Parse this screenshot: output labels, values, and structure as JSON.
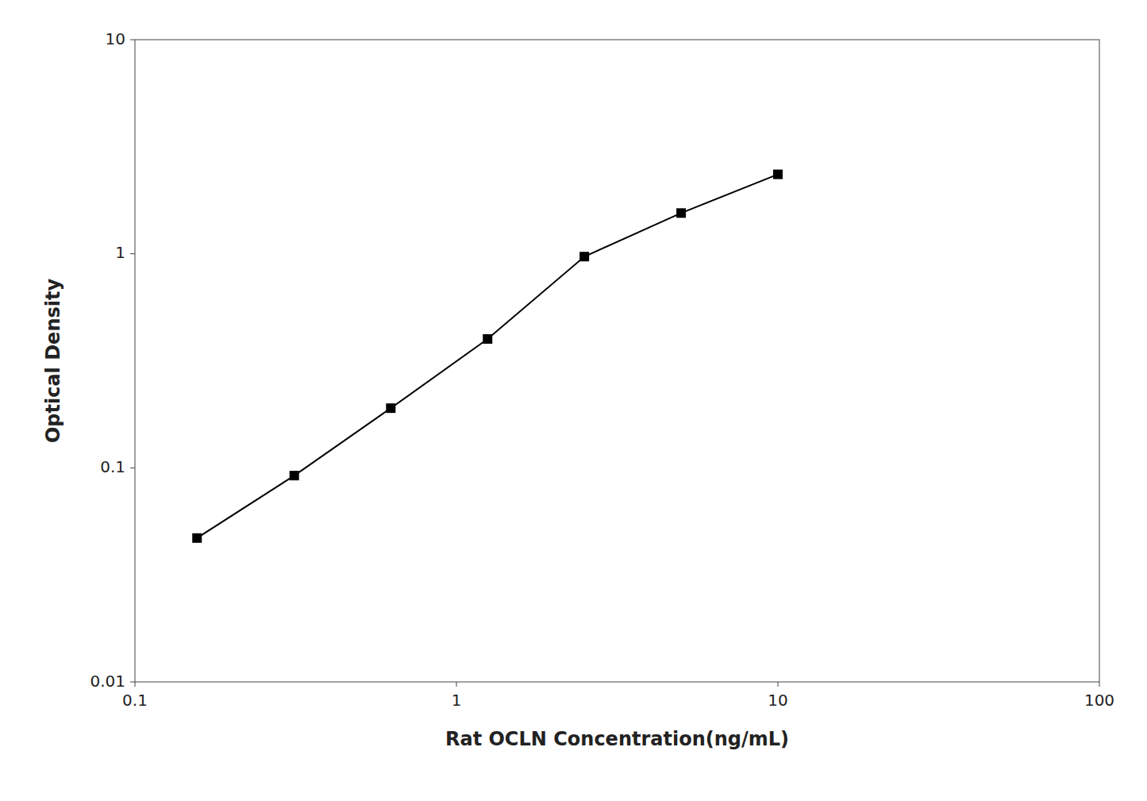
{
  "chart_data": {
    "type": "line",
    "x": [
      0.156,
      0.313,
      0.625,
      1.25,
      2.5,
      5.0,
      10.0
    ],
    "values": [
      0.047,
      0.092,
      0.19,
      0.4,
      0.97,
      1.55,
      2.35
    ],
    "x_label": "Rat OCLN Concentration(ng/mL)",
    "y_label": "Optical Density",
    "xlim": [
      0.1,
      100
    ],
    "ylim": [
      0.01,
      10
    ],
    "xticks": [
      0.1,
      1,
      10,
      100
    ],
    "yticks": [
      0.01,
      0.1,
      1,
      10
    ],
    "log": true,
    "grid": false,
    "color": "#000000",
    "marker": "square"
  }
}
